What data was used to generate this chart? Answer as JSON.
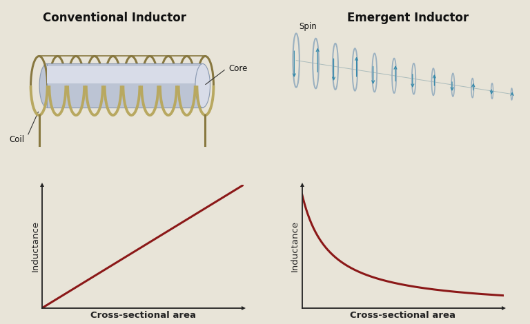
{
  "bg_color": "#e8e4d8",
  "title_left": "Conventional Inductor",
  "title_right": "Emergent Inductor",
  "label_coil": "Coil",
  "label_core": "Core",
  "label_spin": "Spin",
  "xlabel": "Cross-sectional area",
  "ylabel": "Inductance",
  "curve_color": "#8b1818",
  "axis_color": "#222222",
  "title_fontsize": 12,
  "label_fontsize": 9.5,
  "coil_color": "#b8a860",
  "coil_shadow": "#887840",
  "core_light": "#d8dce8",
  "core_mid": "#bcc4d4",
  "core_dark": "#8898b0",
  "ellipse_edge": "#9ab0c0",
  "arrow_color": "#3388aa"
}
